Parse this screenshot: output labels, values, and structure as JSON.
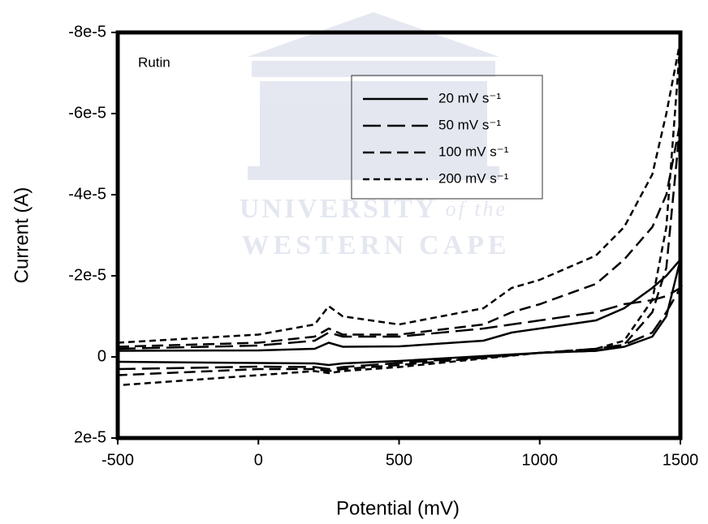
{
  "chart_data": {
    "type": "line",
    "annotation": "Rutin",
    "xlabel": "Potential (mV)",
    "ylabel": "Current (A)",
    "watermark": {
      "line1": "UNIVERSITY",
      "line1_suffix": "of the",
      "line2": "WESTERN CAPE"
    },
    "xlim": [
      -500,
      1500
    ],
    "xticks": [
      -500,
      0,
      500,
      1000,
      1500
    ],
    "ylim": [
      -8e-05,
      2e-05
    ],
    "y_inverted": true,
    "yticks": [
      {
        "value": -8e-05,
        "label": "-8e-5"
      },
      {
        "value": -6e-05,
        "label": "-6e-5"
      },
      {
        "value": -4e-05,
        "label": "-4e-5"
      },
      {
        "value": -2e-05,
        "label": "-2e-5"
      },
      0,
      {
        "value": 2e-05,
        "label": "2e-5"
      }
    ],
    "grid": false,
    "legend": "upper-right",
    "series": [
      {
        "name": "20 mV s⁻¹",
        "color": "#000000",
        "dash": "solid",
        "x": [
          -500,
          0,
          200,
          250,
          300,
          500,
          800,
          900,
          1000,
          1200,
          1300,
          1400,
          1450,
          1500,
          1450,
          1400,
          1300,
          1200,
          1000,
          500,
          300,
          250,
          200,
          0,
          -500
        ],
        "values": [
          -1.5e-06,
          -1.6e-06,
          -2e-06,
          -3.5e-06,
          -2.5e-06,
          -2.6e-06,
          -4e-06,
          -6e-06,
          -7e-06,
          -9e-06,
          -1.2e-05,
          -1.7e-05,
          -2e-05,
          -2.4e-05,
          -1e-05,
          -5e-06,
          -2.5e-06,
          -1.5e-06,
          -1e-06,
          1e-06,
          1.6e-06,
          2e-06,
          1.6e-06,
          1.5e-06,
          1.2e-06
        ]
      },
      {
        "name": "50 mV s⁻¹",
        "color": "#000000",
        "dash": "long",
        "x": [
          -500,
          0,
          200,
          250,
          300,
          500,
          800,
          900,
          1000,
          1200,
          1300,
          1400,
          1450,
          1500,
          1450,
          1400,
          1300,
          1200,
          1000,
          500,
          300,
          250,
          200,
          0,
          -500
        ],
        "values": [
          -2e-06,
          -2.8e-06,
          -4e-06,
          -6e-06,
          -5e-06,
          -5e-06,
          -7e-06,
          -8e-06,
          -9e-06,
          -1.1e-05,
          -1.3e-05,
          -1.4e-05,
          -1.5e-05,
          -1.7e-05,
          -1.1e-05,
          -6e-06,
          -3e-06,
          -2e-06,
          -1e-06,
          1.5e-06,
          2.5e-06,
          3e-06,
          2.5e-06,
          2.4e-06,
          3e-06
        ]
      },
      {
        "name": "100 mV s⁻¹",
        "color": "#000000",
        "dash": "medium",
        "x": [
          -500,
          0,
          200,
          250,
          300,
          500,
          800,
          900,
          1000,
          1200,
          1300,
          1400,
          1450,
          1500,
          1450,
          1400,
          1300,
          1200,
          1000,
          500,
          300,
          250,
          200,
          0,
          -500
        ],
        "values": [
          -2.5e-06,
          -3.5e-06,
          -5e-06,
          -7e-06,
          -5.5e-06,
          -5.5e-06,
          -8e-06,
          -1.1e-05,
          -1.3e-05,
          -1.8e-05,
          -2.4e-05,
          -3.2e-05,
          -4e-05,
          -5.8e-05,
          -2.2e-05,
          -1.1e-05,
          -3e-06,
          -1.5e-06,
          -1e-06,
          2e-06,
          3e-06,
          3.5e-06,
          3e-06,
          3e-06,
          4.5e-06
        ]
      },
      {
        "name": "200 mV s⁻¹",
        "color": "#000000",
        "dash": "short",
        "x": [
          -500,
          0,
          200,
          250,
          300,
          500,
          800,
          900,
          1000,
          1200,
          1300,
          1400,
          1450,
          1500,
          1450,
          1400,
          1300,
          1200,
          1000,
          500,
          300,
          250,
          200,
          0,
          -500
        ],
        "values": [
          -3.5e-06,
          -5.5e-06,
          -8e-06,
          -1.25e-05,
          -1e-05,
          -8e-06,
          -1.2e-05,
          -1.7e-05,
          -1.9e-05,
          -2.5e-05,
          -3.2e-05,
          -4.5e-05,
          -6e-05,
          -7.8e-05,
          -3.2e-05,
          -1.4e-05,
          -4e-06,
          -2e-06,
          -1e-06,
          2.5e-06,
          3.5e-06,
          4e-06,
          3.5e-06,
          4.5e-06,
          7e-06
        ]
      }
    ]
  }
}
